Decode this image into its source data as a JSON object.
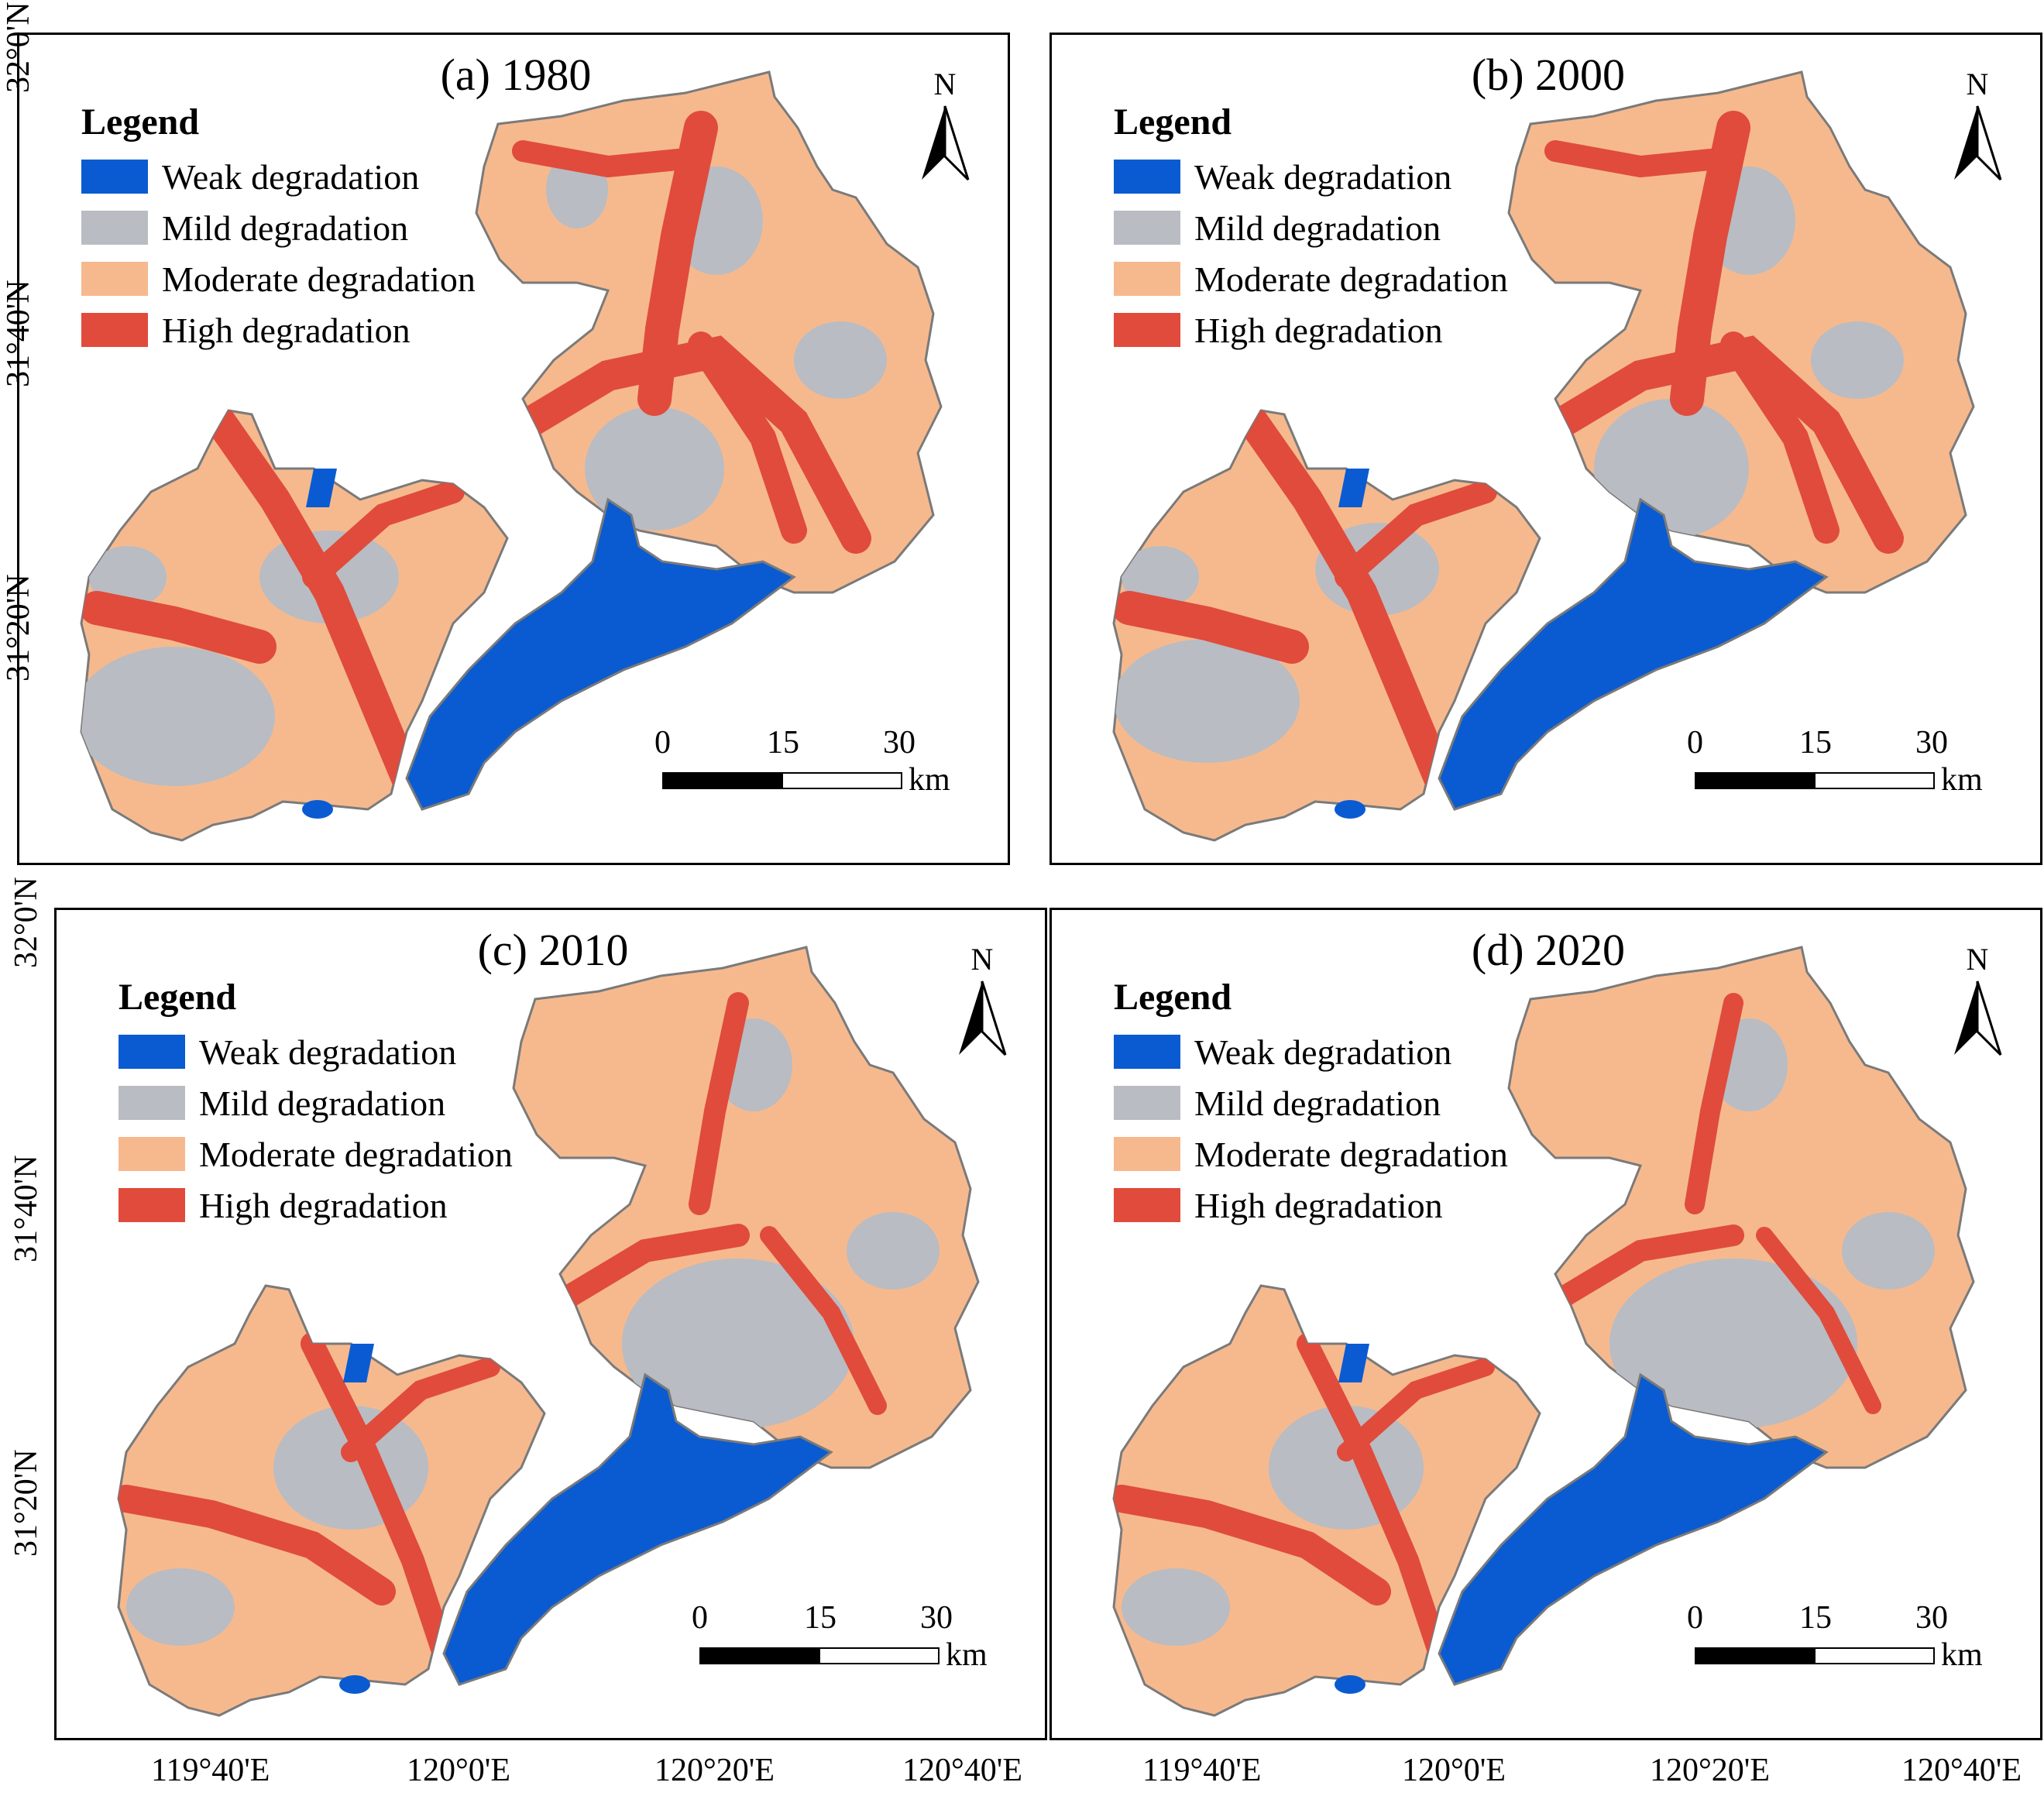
{
  "colors": {
    "weak": "#0a5bd1",
    "mild": "#b9bcc2",
    "moderate": "#f6b98e",
    "high": "#e04b3c",
    "outline": "#7a7a7a"
  },
  "legend": {
    "title": "Legend",
    "items": [
      {
        "label": "Weak degradation",
        "color": "#0a5bd1"
      },
      {
        "label": "Mild degradation",
        "color": "#b9bcc2"
      },
      {
        "label": "Moderate degradation",
        "color": "#f6b98e"
      },
      {
        "label": "High degradation",
        "color": "#e04b3c"
      }
    ]
  },
  "panels": [
    {
      "id": "a",
      "title": "(a) 1980"
    },
    {
      "id": "b",
      "title": "(b) 2000"
    },
    {
      "id": "c",
      "title": "(c) 2010"
    },
    {
      "id": "d",
      "title": "(d) 2020"
    }
  ],
  "north_arrow": "N",
  "scale": {
    "ticks": [
      "0",
      "15",
      "30"
    ],
    "unit": "km"
  },
  "axes": {
    "lat_labels": [
      "32°0'N",
      "31°40'N",
      "31°20'N"
    ],
    "lon_labels": [
      "119°40'E",
      "120°0'E",
      "120°20'E",
      "120°40'E"
    ]
  },
  "icons": {
    "north_arrow": "north-arrow-icon"
  }
}
